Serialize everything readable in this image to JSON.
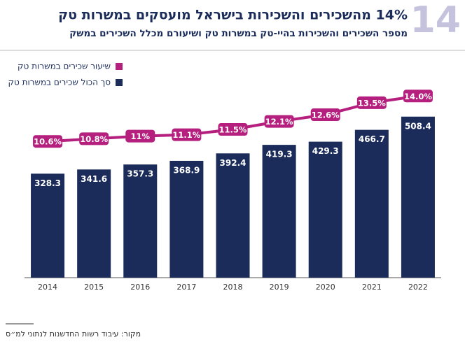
{
  "chart_data": {
    "type": "bar_line",
    "badge": "14",
    "title": "14% מהשכירים והשכירות בישראל מועסקים במשרות טק",
    "subtitle": "מספר השכירים והשכירות בהיי-טק במשרות טק ושיעורם מכלל השכירים במשק",
    "categories": [
      "2014",
      "2015",
      "2016",
      "2017",
      "2018",
      "2019",
      "2020",
      "2021",
      "2022"
    ],
    "series": [
      {
        "name": "סך הכול שכירים במשרות טק",
        "type": "bar",
        "color": "#1b2c5a",
        "values": [
          328.3,
          341.6,
          357.3,
          368.9,
          392.4,
          419.3,
          429.3,
          466.7,
          508.4
        ]
      },
      {
        "name": "שיעור שכירים במשרות טק",
        "type": "line",
        "axis": "y2",
        "color": "#b5207f",
        "values": [
          10.6,
          10.8,
          11,
          11.1,
          11.5,
          12.1,
          12.6,
          13.5,
          14.0
        ],
        "value_labels": [
          "10.6%",
          "10.8%",
          "11%",
          "11.1%",
          "11.5%",
          "12.1%",
          "12.6%",
          "13.5%",
          "14.0%"
        ]
      }
    ],
    "ylim": [
      0,
      700
    ],
    "y2lim": [
      0.4,
      17
    ],
    "source": "מקור: עיבוד רשות החדשנות לנתוני למ״ס"
  }
}
